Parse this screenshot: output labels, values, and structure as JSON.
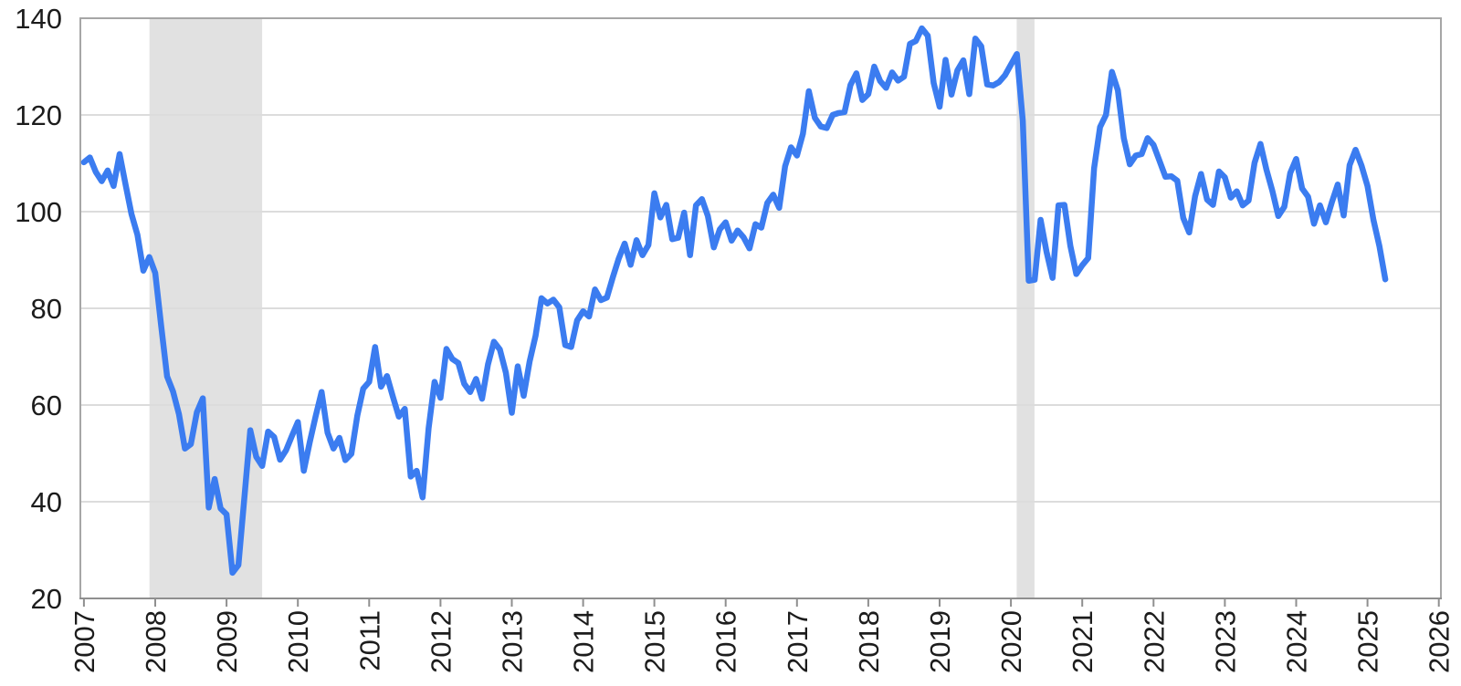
{
  "page": {
    "background": "#ffffff"
  },
  "chart_data": {
    "type": "line",
    "title": "",
    "frequency": "monthly",
    "x_start": "2007-01",
    "x_end": "2025-04",
    "xlim": [
      2006.95,
      2026.03
    ],
    "ylim": [
      20,
      140
    ],
    "yticks": [
      20,
      40,
      60,
      80,
      100,
      120,
      140
    ],
    "xticks": [
      2007,
      2008,
      2009,
      2010,
      2011,
      2012,
      2013,
      2014,
      2015,
      2016,
      2017,
      2018,
      2019,
      2020,
      2021,
      2022,
      2023,
      2024,
      2025,
      2026
    ],
    "grid": "horizontal",
    "legend": "none",
    "recession_bands": [
      {
        "start": 2007.92,
        "end": 2009.5
      },
      {
        "start": 2020.08,
        "end": 2020.33
      }
    ],
    "values": [
      110.2,
      111.2,
      108.2,
      106.3,
      108.5,
      105.3,
      111.9,
      105.6,
      99.5,
      95.2,
      87.8,
      90.6,
      87.3,
      76.4,
      65.9,
      62.8,
      58.1,
      51.0,
      51.9,
      58.5,
      61.4,
      38.8,
      44.7,
      38.6,
      37.4,
      25.3,
      26.9,
      40.8,
      54.8,
      49.3,
      47.4,
      54.5,
      53.4,
      48.7,
      50.6,
      53.6,
      56.5,
      46.4,
      52.3,
      57.7,
      62.7,
      54.3,
      51.0,
      53.2,
      48.6,
      49.9,
      57.8,
      63.4,
      64.8,
      72.0,
      63.8,
      66.0,
      61.7,
      57.6,
      59.2,
      45.2,
      46.4,
      40.9,
      55.2,
      64.8,
      61.5,
      71.6,
      69.5,
      68.7,
      64.4,
      62.7,
      65.4,
      61.3,
      68.4,
      73.1,
      71.5,
      66.7,
      58.4,
      68.0,
      61.9,
      69.0,
      74.3,
      82.1,
      81.0,
      81.8,
      80.2,
      72.4,
      72.0,
      77.5,
      79.4,
      78.3,
      83.9,
      81.7,
      82.2,
      86.4,
      90.3,
      93.4,
      89.0,
      94.1,
      91.0,
      93.1,
      103.8,
      98.8,
      101.4,
      94.3,
      94.6,
      99.8,
      91.0,
      101.3,
      102.6,
      99.1,
      92.6,
      96.3,
      97.8,
      94.0,
      96.1,
      94.7,
      92.4,
      97.4,
      96.7,
      101.8,
      103.5,
      100.8,
      109.4,
      113.3,
      111.6,
      116.1,
      124.9,
      119.4,
      117.6,
      117.3,
      120.0,
      120.4,
      120.6,
      126.2,
      128.6,
      123.1,
      124.3,
      130.0,
      127.0,
      125.6,
      128.8,
      127.1,
      127.9,
      134.7,
      135.3,
      137.9,
      136.4,
      126.6,
      121.7,
      131.4,
      124.2,
      129.2,
      131.3,
      124.3,
      135.8,
      134.2,
      126.3,
      126.1,
      126.8,
      128.2,
      130.4,
      132.6,
      118.8,
      85.7,
      85.9,
      98.3,
      91.7,
      86.3,
      101.3,
      101.4,
      92.9,
      87.1,
      88.9,
      90.4,
      109.0,
      117.5,
      120.0,
      128.9,
      125.1,
      115.2,
      109.8,
      111.6,
      111.9,
      115.2,
      113.8,
      110.5,
      107.2,
      107.3,
      106.4,
      98.7,
      95.7,
      103.2,
      107.8,
      102.5,
      101.4,
      108.3,
      107.1,
      102.9,
      104.2,
      101.3,
      102.3,
      110.1,
      114.0,
      108.7,
      104.3,
      99.1,
      101.0,
      108.0,
      110.9,
      104.8,
      103.1,
      97.5,
      101.3,
      97.8,
      101.9,
      105.6,
      99.2,
      109.6,
      112.8,
      109.5,
      105.3,
      98.3,
      92.9,
      86.0
    ],
    "colors": {
      "line": "#3b7cf0",
      "recession_band": "#e1e1e1",
      "gridline": "#dcdcdc",
      "plot_border": "#a6a6a6",
      "axis": "#8f8f8f",
      "tick_label": "#1c1c1c"
    }
  }
}
